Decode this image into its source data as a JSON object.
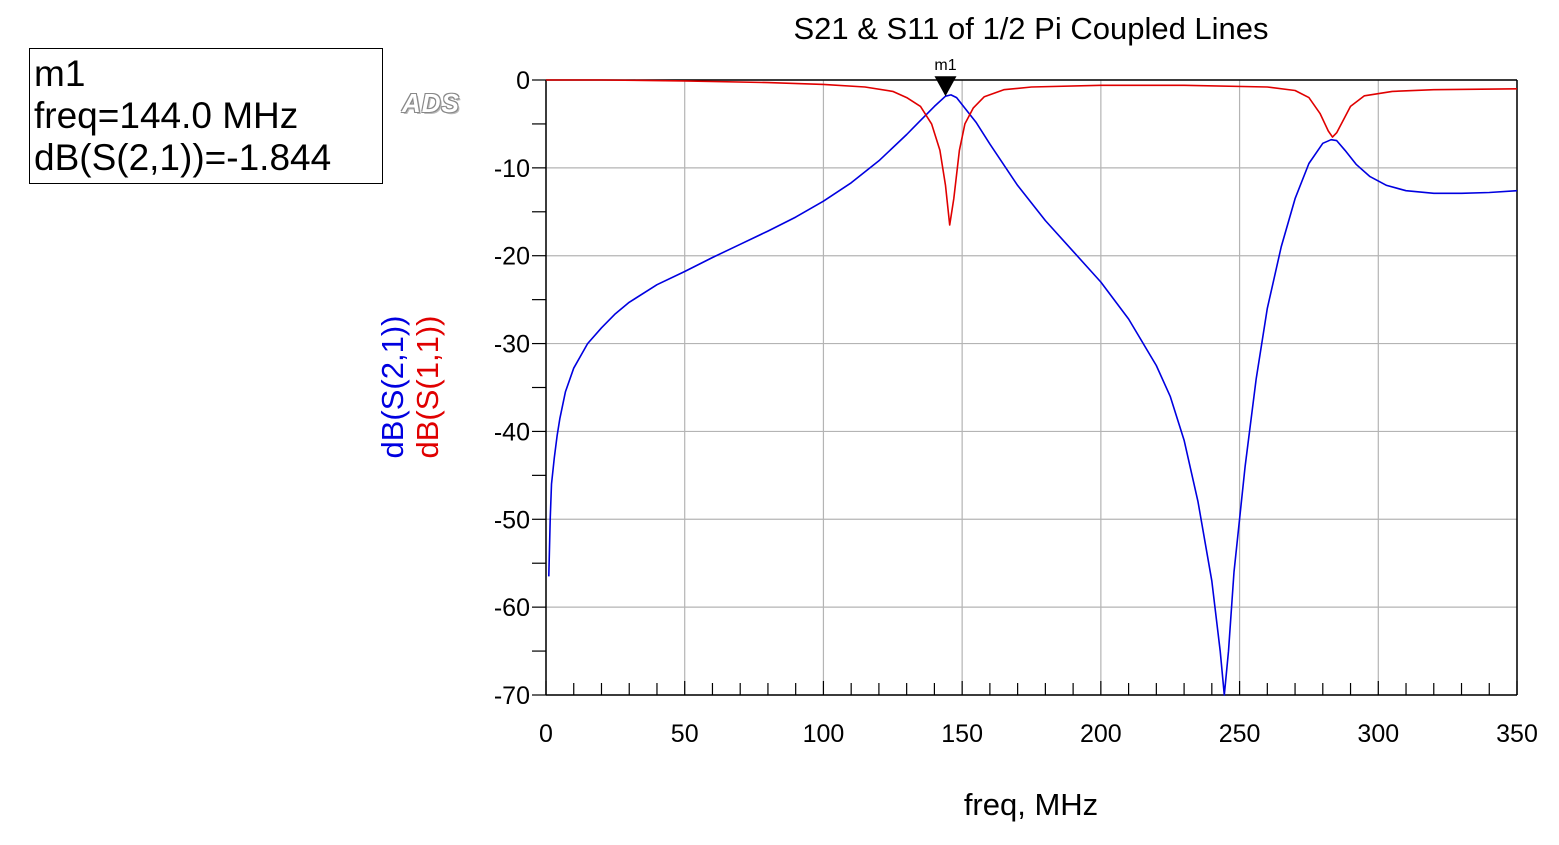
{
  "marker": {
    "name": "m1",
    "freq_text": "freq=144.0 MHz",
    "value_text": "dB(S(2,1))=-1.844"
  },
  "watermark": "ADS",
  "chart_data": {
    "type": "line",
    "title": "S21 & S11 of 1/2 Pi Coupled Lines",
    "xlabel": "freq, MHz",
    "xlim": [
      0,
      350
    ],
    "ylim": [
      -70,
      0
    ],
    "xticks": [
      0,
      50,
      100,
      150,
      200,
      250,
      300,
      350
    ],
    "yticks": [
      0,
      -10,
      -20,
      -30,
      -40,
      -50,
      -60,
      -70
    ],
    "x_minor_step": 10,
    "y_minor_step": 5,
    "grid": true,
    "marker": {
      "label": "m1",
      "x": 144.0,
      "y": -1.844,
      "series": "dB(S(2,1))"
    },
    "series": [
      {
        "name": "dB(S(2,1))",
        "color": "#0000e0",
        "points": [
          [
            1,
            -56.5
          ],
          [
            1.5,
            -50
          ],
          [
            2,
            -46
          ],
          [
            3,
            -43
          ],
          [
            4,
            -40.5
          ],
          [
            5,
            -38.5
          ],
          [
            7,
            -35.5
          ],
          [
            10,
            -32.8
          ],
          [
            15,
            -30
          ],
          [
            20,
            -28.2
          ],
          [
            25,
            -26.6
          ],
          [
            30,
            -25.3
          ],
          [
            40,
            -23.3
          ],
          [
            50,
            -21.8
          ],
          [
            60,
            -20.2
          ],
          [
            70,
            -18.7
          ],
          [
            80,
            -17.2
          ],
          [
            90,
            -15.6
          ],
          [
            100,
            -13.8
          ],
          [
            110,
            -11.7
          ],
          [
            120,
            -9.2
          ],
          [
            130,
            -6.2
          ],
          [
            135,
            -4.6
          ],
          [
            140,
            -3.0
          ],
          [
            144,
            -1.844
          ],
          [
            146,
            -1.7
          ],
          [
            148,
            -2.0
          ],
          [
            150,
            -2.8
          ],
          [
            155,
            -4.8
          ],
          [
            160,
            -7.3
          ],
          [
            170,
            -12.0
          ],
          [
            180,
            -16.0
          ],
          [
            190,
            -19.5
          ],
          [
            200,
            -23.0
          ],
          [
            210,
            -27.2
          ],
          [
            220,
            -32.5
          ],
          [
            225,
            -36.0
          ],
          [
            230,
            -41.0
          ],
          [
            235,
            -48.0
          ],
          [
            240,
            -57.0
          ],
          [
            243,
            -65.0
          ],
          [
            244.5,
            -70.0
          ],
          [
            246,
            -65.0
          ],
          [
            248,
            -56.0
          ],
          [
            252,
            -44.0
          ],
          [
            256,
            -34.0
          ],
          [
            260,
            -26.0
          ],
          [
            265,
            -19.0
          ],
          [
            270,
            -13.5
          ],
          [
            275,
            -9.5
          ],
          [
            280,
            -7.2
          ],
          [
            283,
            -6.8
          ],
          [
            285,
            -6.9
          ],
          [
            288,
            -8.0
          ],
          [
            292,
            -9.6
          ],
          [
            297,
            -11.0
          ],
          [
            303,
            -12.0
          ],
          [
            310,
            -12.6
          ],
          [
            320,
            -12.9
          ],
          [
            330,
            -12.9
          ],
          [
            340,
            -12.8
          ],
          [
            350,
            -12.6
          ]
        ]
      },
      {
        "name": "dB(S(1,1))",
        "color": "#e00000",
        "points": [
          [
            0,
            0.0
          ],
          [
            20,
            0.0
          ],
          [
            50,
            -0.1
          ],
          [
            80,
            -0.3
          ],
          [
            100,
            -0.5
          ],
          [
            115,
            -0.8
          ],
          [
            125,
            -1.3
          ],
          [
            130,
            -2.0
          ],
          [
            135,
            -3.0
          ],
          [
            139,
            -5.0
          ],
          [
            142,
            -8.0
          ],
          [
            144,
            -12.0
          ],
          [
            145.5,
            -16.5
          ],
          [
            147,
            -13.5
          ],
          [
            149,
            -8.0
          ],
          [
            151,
            -5.0
          ],
          [
            154,
            -3.2
          ],
          [
            158,
            -1.9
          ],
          [
            165,
            -1.1
          ],
          [
            175,
            -0.8
          ],
          [
            200,
            -0.6
          ],
          [
            230,
            -0.6
          ],
          [
            260,
            -0.8
          ],
          [
            270,
            -1.2
          ],
          [
            275,
            -2.0
          ],
          [
            279,
            -3.8
          ],
          [
            282,
            -5.8
          ],
          [
            283.5,
            -6.5
          ],
          [
            285,
            -6.0
          ],
          [
            287,
            -4.8
          ],
          [
            290,
            -3.0
          ],
          [
            295,
            -1.8
          ],
          [
            305,
            -1.3
          ],
          [
            320,
            -1.1
          ],
          [
            350,
            -1.0
          ]
        ]
      }
    ]
  }
}
